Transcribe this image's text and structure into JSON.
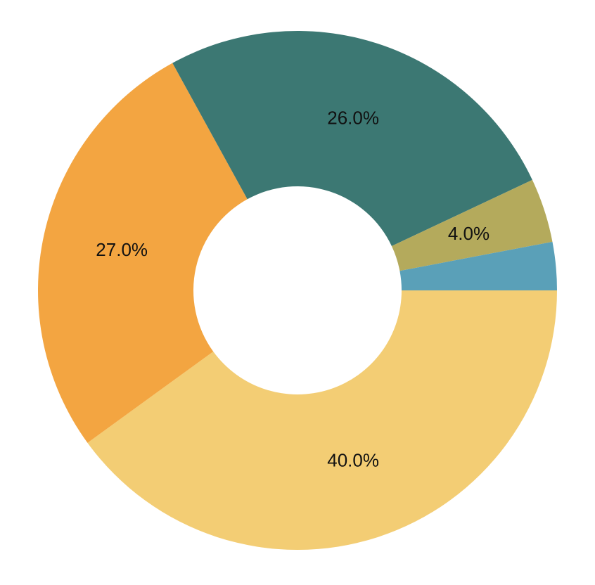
{
  "chart_data": {
    "type": "donut",
    "categories": [
      null,
      null,
      null,
      null,
      null
    ],
    "values": [
      40,
      27,
      26,
      4,
      3
    ],
    "value_labels": [
      "40.0%",
      "27.0%",
      "26.0%",
      "4.0%",
      null
    ],
    "colors": [
      "#f3cd74",
      "#f3a541",
      "#3c7873",
      "#b4aa5c",
      "#5aa0b8"
    ]
  }
}
